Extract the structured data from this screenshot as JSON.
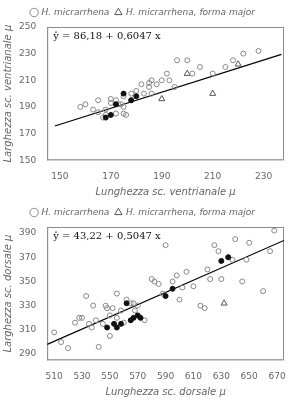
{
  "chart_data": [
    {
      "type": "scatter",
      "x_label": "Lunghezza sc. ventrianale μ",
      "y_label": "Larghezza sc. ventrianale μ",
      "annotation": "ŷ = 86,18 + 0,6047 x",
      "xlim": [
        145,
        238
      ],
      "ylim": [
        150,
        250
      ],
      "xticks": [
        150,
        170,
        190,
        210,
        230
      ],
      "yticks": [
        150,
        170,
        190,
        210,
        230,
        250
      ],
      "grid": false,
      "legend": "top",
      "series": [
        {
          "type": "line",
          "color": "#000000",
          "line_style": "solid",
          "x": [
            148,
            237
          ],
          "values": [
            175.6756,
            229.4939
          ]
        },
        {
          "name": "H. micrarrhena",
          "type": "scatter",
          "marker": "open_circle",
          "color": "#888888",
          "x": [
            158,
            160,
            163,
            165,
            165,
            167,
            168,
            168,
            170,
            170,
            172,
            172,
            173,
            174,
            175,
            175,
            175,
            176,
            178,
            178,
            180,
            182,
            183,
            185,
            185,
            186,
            186,
            188,
            190,
            192,
            193,
            195,
            196,
            200,
            202,
            205,
            210,
            215,
            218,
            222,
            228
          ],
          "values": [
            190,
            192,
            188,
            186,
            195,
            182,
            184,
            188,
            193,
            196,
            185,
            195,
            192,
            192,
            185,
            190,
            198,
            184,
            200,
            195,
            202,
            207,
            200,
            205,
            208,
            200,
            210,
            207,
            210,
            215,
            210,
            205,
            225,
            225,
            215,
            220,
            215,
            220,
            225,
            230,
            232
          ]
        },
        {
          "type": "scatter",
          "marker": "circle",
          "color": "#111111",
          "x": [
            168,
            170,
            172,
            175,
            178,
            180
          ],
          "values": [
            182,
            184,
            192,
            200,
            195,
            198
          ]
        },
        {
          "name": "H. micrarrhena, forma major",
          "type": "scatter",
          "marker": "open_triangle",
          "color": "#555555",
          "x": [
            190,
            200,
            210,
            220
          ],
          "values": [
            196,
            215,
            200,
            222
          ]
        }
      ]
    },
    {
      "type": "scatter",
      "x_label": "Lunghezza sc. dorsale μ",
      "y_label": "Larghezza sc. dorsale μ",
      "annotation": "ŷ = 43,22 + 0,5047 x",
      "xlim": [
        505,
        675
      ],
      "ylim": [
        285,
        395
      ],
      "xticks": [
        510,
        530,
        550,
        570,
        590,
        610,
        630,
        650,
        670
      ],
      "yticks": [
        290,
        310,
        330,
        350,
        370,
        390
      ],
      "grid": false,
      "legend": "top",
      "series": [
        {
          "type": "line",
          "color": "#000000",
          "line_style": "solid",
          "x": [
            505,
            675
          ],
          "values": [
            298.0935,
            383.8925
          ]
        },
        {
          "name": "H. micrarrhena",
          "type": "scatter",
          "marker": "open_circle",
          "color": "#888888",
          "x": [
            510,
            515,
            520,
            525,
            528,
            530,
            533,
            535,
            537,
            538,
            540,
            542,
            545,
            547,
            548,
            550,
            550,
            552,
            555,
            555,
            558,
            560,
            562,
            565,
            567,
            568,
            570,
            575,
            580,
            582,
            585,
            588,
            590,
            595,
            598,
            600,
            602,
            605,
            610,
            615,
            618,
            620,
            622,
            625,
            628,
            630,
            635,
            638,
            640,
            645,
            648,
            650,
            660,
            665,
            668
          ],
          "values": [
            308,
            300,
            295,
            316,
            320,
            320,
            338,
            315,
            312,
            330,
            318,
            296,
            315,
            330,
            328,
            322,
            305,
            328,
            320,
            340,
            326,
            316,
            335,
            332,
            332,
            326,
            330,
            318,
            352,
            350,
            348,
            340,
            380,
            350,
            355,
            335,
            345,
            358,
            346,
            330,
            328,
            360,
            352,
            380,
            375,
            352,
            370,
            368,
            385,
            350,
            368,
            382,
            342,
            375,
            392
          ]
        },
        {
          "type": "scatter",
          "marker": "circle",
          "color": "#111111",
          "x": [
            548,
            553,
            558,
            562,
            565,
            567,
            570,
            572,
            555,
            590,
            595,
            630,
            635
          ],
          "values": [
            312,
            315,
            315,
            332,
            318,
            320,
            322,
            320,
            312,
            338,
            344,
            367,
            370
          ]
        },
        {
          "name": "H. micrarrhena, forma major",
          "type": "scatter",
          "marker": "open_triangle",
          "color": "#555555",
          "x": [
            632
          ],
          "values": [
            332
          ]
        }
      ]
    }
  ]
}
